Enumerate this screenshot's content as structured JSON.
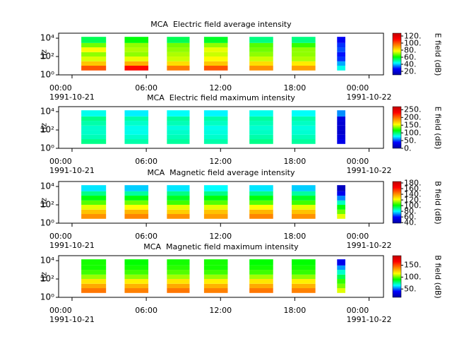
{
  "chart_data": [
    {
      "type": "heatmap",
      "title": "MCA  Electric field average intensity",
      "y_label": "Hz",
      "colorbar_label": "E field (dB)",
      "xlim": [
        "1991-10-20 22:55",
        "1991-10-22 01:10"
      ],
      "xticks": [
        {
          "value": "1991-10-21 00:00",
          "label": "00:00\n1991-10-21"
        },
        {
          "value": "1991-10-21 06:00",
          "label": "06:00"
        },
        {
          "value": "1991-10-21 12:00",
          "label": "12:00"
        },
        {
          "value": "1991-10-21 18:00",
          "label": "18:00"
        },
        {
          "value": "1991-10-22 00:00",
          "label": "00:00\n1991-10-22"
        }
      ],
      "ylim": [
        1,
        35000
      ],
      "log_y": true,
      "yticks": [
        {
          "value": 1,
          "label": "10⁰"
        },
        {
          "value": 100,
          "label": "10²"
        },
        {
          "value": 10000,
          "label": "10⁴"
        }
      ],
      "freq_bins": [
        3,
        10,
        30,
        100,
        300,
        1000,
        3000,
        14000
      ],
      "time_bins": [
        [
          "1991-10-21 00:45",
          "1991-10-21 02:45"
        ],
        [
          "1991-10-21 04:15",
          "1991-10-21 06:10"
        ],
        [
          "1991-10-21 07:40",
          "1991-10-21 09:30"
        ],
        [
          "1991-10-21 10:40",
          "1991-10-21 12:35"
        ],
        [
          "1991-10-21 14:20",
          "1991-10-21 16:15"
        ],
        [
          "1991-10-21 17:45",
          "1991-10-21 19:40"
        ],
        [
          "1991-10-21 21:25",
          "1991-10-21 22:05"
        ]
      ],
      "values": [
        [
          100,
          85,
          75,
          70,
          78,
          68,
          55
        ],
        [
          110,
          88,
          76,
          70,
          72,
          70,
          60
        ],
        [
          95,
          82,
          74,
          72,
          70,
          68,
          55
        ],
        [
          100,
          85,
          78,
          74,
          76,
          70,
          58
        ],
        [
          92,
          82,
          74,
          70,
          68,
          66,
          52
        ],
        [
          90,
          80,
          72,
          70,
          70,
          64,
          52
        ],
        [
          45,
          38,
          30,
          28,
          32,
          30,
          25
        ]
      ],
      "clim": [
        10,
        128
      ],
      "cticks": [
        {
          "value": 20,
          "label": "20."
        },
        {
          "value": 40,
          "label": "40."
        },
        {
          "value": 60,
          "label": "60."
        },
        {
          "value": 80,
          "label": "80."
        },
        {
          "value": 100,
          "label": "100."
        },
        {
          "value": 120,
          "label": "120."
        }
      ],
      "colormap": [
        "#0000a0",
        "#0000ff",
        "#00ffff",
        "#00ff00",
        "#ffff00",
        "#ff8000",
        "#ff0000",
        "#c00000"
      ]
    },
    {
      "type": "heatmap",
      "title": "MCA  Electric field maximum intensity",
      "y_label": "Hz",
      "colorbar_label": "E field (dB)",
      "xlim": [
        "1991-10-20 22:55",
        "1991-10-22 01:10"
      ],
      "xticks": [
        {
          "value": "1991-10-21 00:00",
          "label": "00:00\n1991-10-21"
        },
        {
          "value": "1991-10-21 06:00",
          "label": "06:00"
        },
        {
          "value": "1991-10-21 12:00",
          "label": "12:00"
        },
        {
          "value": "1991-10-21 18:00",
          "label": "18:00"
        },
        {
          "value": "1991-10-22 00:00",
          "label": "00:00\n1991-10-22"
        }
      ],
      "ylim": [
        1,
        35000
      ],
      "log_y": true,
      "yticks": [
        {
          "value": 1,
          "label": "10⁰"
        },
        {
          "value": 100,
          "label": "10²"
        },
        {
          "value": 10000,
          "label": "10⁴"
        }
      ],
      "freq_bins": [
        3,
        10,
        30,
        100,
        300,
        1000,
        3000,
        14000
      ],
      "time_bins": [
        [
          "1991-10-21 00:45",
          "1991-10-21 02:45"
        ],
        [
          "1991-10-21 04:15",
          "1991-10-21 06:10"
        ],
        [
          "1991-10-21 07:40",
          "1991-10-21 09:30"
        ],
        [
          "1991-10-21 10:40",
          "1991-10-21 12:35"
        ],
        [
          "1991-10-21 14:20",
          "1991-10-21 16:15"
        ],
        [
          "1991-10-21 17:45",
          "1991-10-21 19:40"
        ],
        [
          "1991-10-21 21:25",
          "1991-10-21 22:05"
        ]
      ],
      "values": [
        [
          95,
          88,
          85,
          85,
          90,
          95,
          80
        ],
        [
          90,
          85,
          80,
          80,
          85,
          90,
          75
        ],
        [
          92,
          88,
          85,
          82,
          88,
          92,
          78
        ],
        [
          90,
          85,
          82,
          80,
          86,
          90,
          76
        ],
        [
          95,
          90,
          86,
          84,
          88,
          92,
          80
        ],
        [
          92,
          88,
          84,
          82,
          86,
          90,
          78
        ],
        [
          30,
          25,
          20,
          20,
          22,
          25,
          60
        ]
      ],
      "clim": [
        0,
        270
      ],
      "cticks": [
        {
          "value": 0,
          "label": "0."
        },
        {
          "value": 50,
          "label": "50."
        },
        {
          "value": 100,
          "label": "100."
        },
        {
          "value": 150,
          "label": "150."
        },
        {
          "value": 200,
          "label": "200."
        },
        {
          "value": 250,
          "label": "250."
        }
      ],
      "colormap": [
        "#0000a0",
        "#0000ff",
        "#00ffff",
        "#00ff00",
        "#ffff00",
        "#ff8000",
        "#ff0000",
        "#c00000"
      ]
    },
    {
      "type": "heatmap",
      "title": "MCA  Magnetic field average intensity",
      "y_label": "Hz",
      "colorbar_label": "B field (dB)",
      "xlim": [
        "1991-10-20 22:55",
        "1991-10-22 01:10"
      ],
      "xticks": [
        {
          "value": "1991-10-21 00:00",
          "label": "00:00\n1991-10-21"
        },
        {
          "value": "1991-10-21 06:00",
          "label": "06:00"
        },
        {
          "value": "1991-10-21 12:00",
          "label": "12:00"
        },
        {
          "value": "1991-10-21 18:00",
          "label": "18:00"
        },
        {
          "value": "1991-10-22 00:00",
          "label": "00:00\n1991-10-22"
        }
      ],
      "ylim": [
        1,
        35000
      ],
      "log_y": true,
      "yticks": [
        {
          "value": 1,
          "label": "10⁰"
        },
        {
          "value": 100,
          "label": "10²"
        },
        {
          "value": 10000,
          "label": "10⁴"
        }
      ],
      "freq_bins": [
        3,
        10,
        30,
        100,
        300,
        1000,
        3000,
        14000
      ],
      "time_bins": [
        [
          "1991-10-21 00:45",
          "1991-10-21 02:45"
        ],
        [
          "1991-10-21 04:15",
          "1991-10-21 06:10"
        ],
        [
          "1991-10-21 07:40",
          "1991-10-21 09:30"
        ],
        [
          "1991-10-21 10:40",
          "1991-10-21 12:35"
        ],
        [
          "1991-10-21 14:20",
          "1991-10-21 16:15"
        ],
        [
          "1991-10-21 17:45",
          "1991-10-21 19:40"
        ],
        [
          "1991-10-21 21:25",
          "1991-10-21 22:05"
        ]
      ],
      "values": [
        [
          140,
          132,
          120,
          108,
          100,
          90,
          78
        ],
        [
          142,
          134,
          122,
          110,
          100,
          88,
          76
        ],
        [
          140,
          130,
          120,
          106,
          98,
          90,
          78
        ],
        [
          138,
          132,
          120,
          108,
          100,
          90,
          80
        ],
        [
          142,
          134,
          122,
          108,
          100,
          90,
          78
        ],
        [
          140,
          132,
          120,
          106,
          98,
          88,
          76
        ],
        [
          120,
          110,
          100,
          85,
          70,
          55,
          45
        ]
      ],
      "clim": [
        38,
        185
      ],
      "cticks": [
        {
          "value": 40,
          "label": "40."
        },
        {
          "value": 60,
          "label": "60."
        },
        {
          "value": 80,
          "label": "80."
        },
        {
          "value": 100,
          "label": "100."
        },
        {
          "value": 120,
          "label": "120."
        },
        {
          "value": 140,
          "label": "140."
        },
        {
          "value": 160,
          "label": "160."
        },
        {
          "value": 180,
          "label": "180."
        }
      ],
      "colormap": [
        "#0000a0",
        "#0000ff",
        "#00ffff",
        "#00ff00",
        "#ffff00",
        "#ff8000",
        "#ff0000",
        "#c00000"
      ]
    },
    {
      "type": "heatmap",
      "title": "MCA  Magnetic field maximum intensity",
      "y_label": "Hz",
      "colorbar_label": "B field (dB)",
      "xlim": [
        "1991-10-20 22:55",
        "1991-10-22 01:10"
      ],
      "xticks": [
        {
          "value": "1991-10-21 00:00",
          "label": "00:00\n1991-10-21"
        },
        {
          "value": "1991-10-21 06:00",
          "label": "06:00"
        },
        {
          "value": "1991-10-21 12:00",
          "label": "12:00"
        },
        {
          "value": "1991-10-21 18:00",
          "label": "18:00"
        },
        {
          "value": "1991-10-22 00:00",
          "label": "00:00\n1991-10-22"
        }
      ],
      "ylim": [
        1,
        35000
      ],
      "log_y": true,
      "yticks": [
        {
          "value": 1,
          "label": "10⁰"
        },
        {
          "value": 100,
          "label": "10²"
        },
        {
          "value": 10000,
          "label": "10⁴"
        }
      ],
      "freq_bins": [
        3,
        10,
        30,
        100,
        300,
        1000,
        3000,
        14000
      ],
      "time_bins": [
        [
          "1991-10-21 00:45",
          "1991-10-21 02:45"
        ],
        [
          "1991-10-21 04:15",
          "1991-10-21 06:10"
        ],
        [
          "1991-10-21 07:40",
          "1991-10-21 09:30"
        ],
        [
          "1991-10-21 10:40",
          "1991-10-21 12:35"
        ],
        [
          "1991-10-21 14:20",
          "1991-10-21 16:15"
        ],
        [
          "1991-10-21 17:45",
          "1991-10-21 19:40"
        ],
        [
          "1991-10-21 21:25",
          "1991-10-21 22:05"
        ]
      ],
      "values": [
        [
          142,
          132,
          120,
          105,
          96,
          92,
          92
        ],
        [
          140,
          130,
          118,
          104,
          96,
          92,
          90
        ],
        [
          142,
          132,
          120,
          106,
          98,
          94,
          92
        ],
        [
          140,
          130,
          118,
          105,
          96,
          92,
          92
        ],
        [
          142,
          132,
          120,
          106,
          96,
          92,
          90
        ],
        [
          140,
          130,
          118,
          104,
          95,
          92,
          90
        ],
        [
          112,
          102,
          95,
          82,
          70,
          55,
          35
        ]
      ],
      "clim": [
        15,
        190
      ],
      "cticks": [
        {
          "value": 50,
          "label": "50."
        },
        {
          "value": 100,
          "label": "100."
        },
        {
          "value": 150,
          "label": "150."
        }
      ],
      "colormap": [
        "#0000a0",
        "#0000ff",
        "#00ffff",
        "#00ff00",
        "#ffff00",
        "#ff8000",
        "#ff0000",
        "#c00000"
      ]
    }
  ]
}
